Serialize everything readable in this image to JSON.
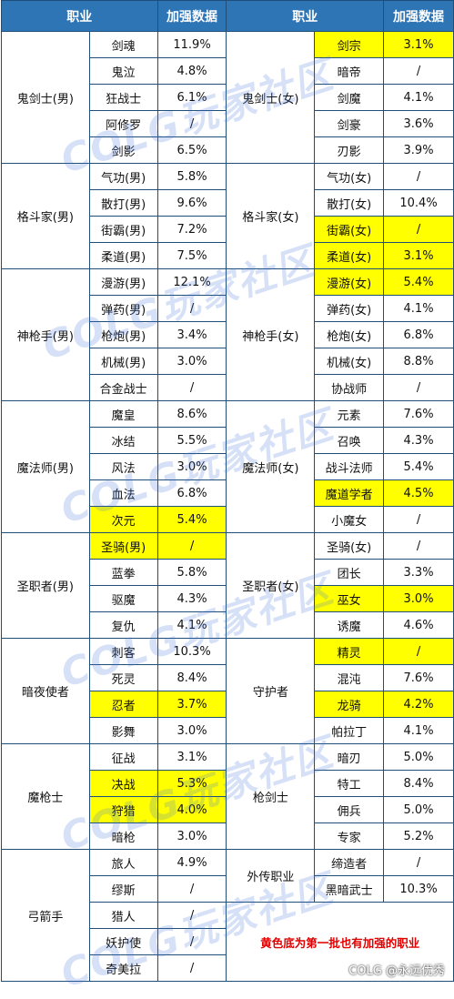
{
  "headers": [
    "职业",
    "加强数据",
    "职业",
    "加强数据"
  ],
  "note": "黄色底为第一批也有加强的职业",
  "watermark": "COLG玩家社区",
  "credit": "COLG @永远优秀",
  "left_groups": [
    {
      "name": "鬼剑士(男)",
      "rows": [
        {
          "job": "剑魂",
          "value": "11.9%",
          "hl": false
        },
        {
          "job": "鬼泣",
          "value": "4.8%",
          "hl": false
        },
        {
          "job": "狂战士",
          "value": "6.1%",
          "hl": false
        },
        {
          "job": "阿修罗",
          "value": "/",
          "hl": false
        },
        {
          "job": "剑影",
          "value": "6.5%",
          "hl": false
        }
      ]
    },
    {
      "name": "格斗家(男)",
      "rows": [
        {
          "job": "气功(男)",
          "value": "5.8%",
          "hl": false
        },
        {
          "job": "散打(男)",
          "value": "9.6%",
          "hl": false
        },
        {
          "job": "街霸(男)",
          "value": "7.2%",
          "hl": false
        },
        {
          "job": "柔道(男)",
          "value": "7.5%",
          "hl": false
        }
      ]
    },
    {
      "name": "神枪手(男)",
      "rows": [
        {
          "job": "漫游(男)",
          "value": "12.1%",
          "hl": false
        },
        {
          "job": "弹药(男)",
          "value": "/",
          "hl": false
        },
        {
          "job": "枪炮(男)",
          "value": "3.4%",
          "hl": false
        },
        {
          "job": "机械(男)",
          "value": "3.0%",
          "hl": false
        },
        {
          "job": "合金战士",
          "value": "/",
          "hl": false
        }
      ]
    },
    {
      "name": "魔法师(男)",
      "rows": [
        {
          "job": "魔皇",
          "value": "8.6%",
          "hl": false
        },
        {
          "job": "冰结",
          "value": "5.5%",
          "hl": false
        },
        {
          "job": "风法",
          "value": "3.0%",
          "hl": false
        },
        {
          "job": "血法",
          "value": "6.8%",
          "hl": false
        },
        {
          "job": "次元",
          "value": "5.4%",
          "hl": true
        }
      ]
    },
    {
      "name": "圣职者(男)",
      "rows": [
        {
          "job": "圣骑(男)",
          "value": "/",
          "hl": true
        },
        {
          "job": "蓝拳",
          "value": "5.8%",
          "hl": false
        },
        {
          "job": "驱魔",
          "value": "4.3%",
          "hl": false
        },
        {
          "job": "复仇",
          "value": "4.1%",
          "hl": false
        }
      ]
    },
    {
      "name": "暗夜使者",
      "rows": [
        {
          "job": "刺客",
          "value": "10.3%",
          "hl": false
        },
        {
          "job": "死灵",
          "value": "8.4%",
          "hl": false
        },
        {
          "job": "忍者",
          "value": "3.7%",
          "hl": true
        },
        {
          "job": "影舞",
          "value": "3.0%",
          "hl": false
        }
      ]
    },
    {
      "name": "魔枪士",
      "rows": [
        {
          "job": "征战",
          "value": "3.1%",
          "hl": false
        },
        {
          "job": "决战",
          "value": "5.3%",
          "hl": true
        },
        {
          "job": "狩猎",
          "value": "4.0%",
          "hl": true
        },
        {
          "job": "暗枪",
          "value": "3.0%",
          "hl": false
        }
      ]
    },
    {
      "name": "弓箭手",
      "rows": [
        {
          "job": "旅人",
          "value": "4.9%",
          "hl": false
        },
        {
          "job": "缪斯",
          "value": "/",
          "hl": false
        },
        {
          "job": "猎人",
          "value": "/",
          "hl": false
        },
        {
          "job": "妖护使",
          "value": "/",
          "hl": false
        },
        {
          "job": "奇美拉",
          "value": "/",
          "hl": false
        }
      ]
    }
  ],
  "right_groups": [
    {
      "name": "鬼剑士(女)",
      "rows": [
        {
          "job": "剑宗",
          "value": "3.1%",
          "hl": true
        },
        {
          "job": "暗帝",
          "value": "/",
          "hl": false
        },
        {
          "job": "剑魔",
          "value": "4.1%",
          "hl": false
        },
        {
          "job": "剑豪",
          "value": "3.6%",
          "hl": false
        },
        {
          "job": "刃影",
          "value": "3.9%",
          "hl": false
        }
      ]
    },
    {
      "name": "格斗家(女)",
      "rows": [
        {
          "job": "气功(女)",
          "value": "/",
          "hl": false
        },
        {
          "job": "散打(女)",
          "value": "10.4%",
          "hl": false
        },
        {
          "job": "街霸(女)",
          "value": "/",
          "hl": true
        },
        {
          "job": "柔道(女)",
          "value": "3.1%",
          "hl": true
        }
      ]
    },
    {
      "name": "神枪手(女)",
      "rows": [
        {
          "job": "漫游(女)",
          "value": "5.4%",
          "hl": true
        },
        {
          "job": "弹药(女)",
          "value": "4.1%",
          "hl": false
        },
        {
          "job": "枪炮(女)",
          "value": "6.8%",
          "hl": false
        },
        {
          "job": "机械(女)",
          "value": "8.8%",
          "hl": false
        },
        {
          "job": "协战师",
          "value": "/",
          "hl": false
        }
      ]
    },
    {
      "name": "魔法师(女)",
      "rows": [
        {
          "job": "元素",
          "value": "7.6%",
          "hl": false
        },
        {
          "job": "召唤",
          "value": "4.3%",
          "hl": false
        },
        {
          "job": "战斗法师",
          "value": "5.4%",
          "hl": false
        },
        {
          "job": "魔道学者",
          "value": "4.5%",
          "hl": true
        },
        {
          "job": "小魔女",
          "value": "/",
          "hl": false
        }
      ]
    },
    {
      "name": "圣职者(女)",
      "rows": [
        {
          "job": "圣骑(女)",
          "value": "/",
          "hl": false
        },
        {
          "job": "团长",
          "value": "3.3%",
          "hl": false
        },
        {
          "job": "巫女",
          "value": "3.0%",
          "hl": true
        },
        {
          "job": "诱魔",
          "value": "4.6%",
          "hl": false
        }
      ]
    },
    {
      "name": "守护者",
      "rows": [
        {
          "job": "精灵",
          "value": "/",
          "hl": true
        },
        {
          "job": "混沌",
          "value": "7.6%",
          "hl": false
        },
        {
          "job": "龙骑",
          "value": "4.2%",
          "hl": true
        },
        {
          "job": "帕拉丁",
          "value": "4.1%",
          "hl": false
        }
      ]
    },
    {
      "name": "枪剑士",
      "rows": [
        {
          "job": "暗刃",
          "value": "5.0%",
          "hl": false
        },
        {
          "job": "特工",
          "value": "8.4%",
          "hl": false
        },
        {
          "job": "佣兵",
          "value": "5.0%",
          "hl": false
        },
        {
          "job": "专家",
          "value": "5.2%",
          "hl": false
        }
      ]
    },
    {
      "name": "外传职业",
      "rows": [
        {
          "job": "缔造者",
          "value": "/",
          "hl": false
        },
        {
          "job": "黑暗武士",
          "value": "10.3%",
          "hl": false
        }
      ]
    }
  ]
}
